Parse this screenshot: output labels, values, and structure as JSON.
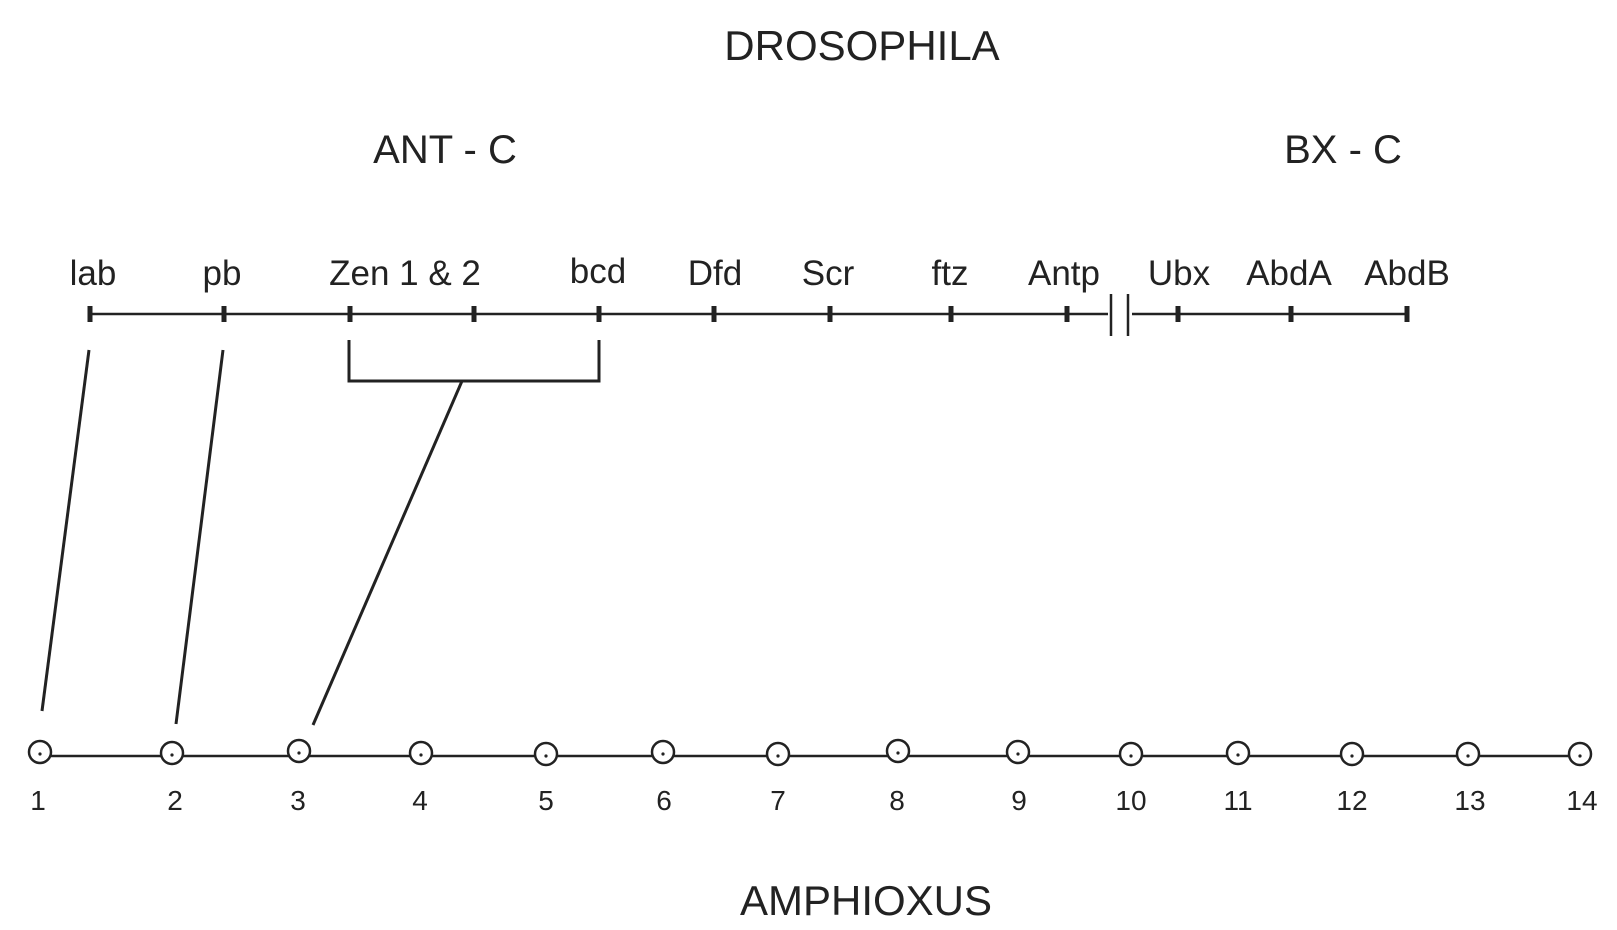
{
  "top_title": "DROSOPHILA",
  "bottom_title": "AMPHIOXUS",
  "clusters": [
    {
      "label": "ANT - C"
    },
    {
      "label": "BX - C"
    }
  ],
  "drosophila_genes": [
    {
      "label": "lab"
    },
    {
      "label": "pb"
    },
    {
      "label": "Zen 1 & 2"
    },
    {
      "label": "bcd"
    },
    {
      "label": "Dfd"
    },
    {
      "label": "Scr"
    },
    {
      "label": "ftz"
    },
    {
      "label": "Antp"
    },
    {
      "label": "Ubx"
    },
    {
      "label": "AbdA"
    },
    {
      "label": "AbdB"
    }
  ],
  "amphioxus_genes": [
    {
      "label": "1"
    },
    {
      "label": "2"
    },
    {
      "label": "3"
    },
    {
      "label": "4"
    },
    {
      "label": "5"
    },
    {
      "label": "6"
    },
    {
      "label": "7"
    },
    {
      "label": "8"
    },
    {
      "label": "9"
    },
    {
      "label": "10"
    },
    {
      "label": "11"
    },
    {
      "label": "12"
    },
    {
      "label": "13"
    },
    {
      "label": "14"
    }
  ],
  "homology_links": [
    {
      "drosophila": "lab",
      "amphioxus": "1"
    },
    {
      "drosophila": "pb",
      "amphioxus": "2"
    },
    {
      "drosophila": "Zen 1 & 2 + bcd",
      "amphioxus": "3"
    }
  ]
}
